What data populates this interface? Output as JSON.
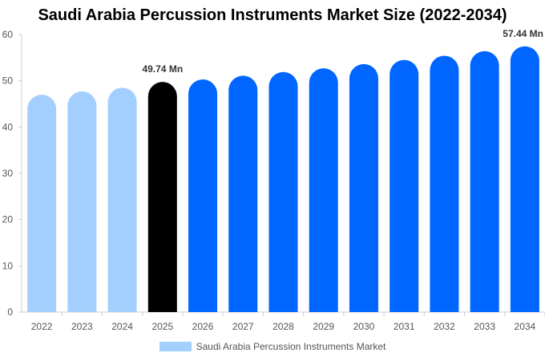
{
  "chart_data": {
    "type": "bar",
    "title": "Saudi Arabia Percussion Instruments Market Size (2022-2034)",
    "categories": [
      "2022",
      "2023",
      "2024",
      "2025",
      "2026",
      "2027",
      "2028",
      "2029",
      "2030",
      "2031",
      "2032",
      "2033",
      "2034"
    ],
    "series": [
      {
        "name": "Saudi Arabia Percussion Instruments Market",
        "values": [
          47.0,
          47.7,
          48.5,
          49.74,
          50.3,
          51.1,
          51.9,
          52.7,
          53.6,
          54.5,
          55.4,
          56.4,
          57.44
        ]
      }
    ],
    "data_labels": [
      {
        "category": "2025",
        "text": "49.74 Mn"
      },
      {
        "category": "2034",
        "text": "57.44 Mn"
      }
    ],
    "ylim": [
      0,
      60
    ],
    "yticks": [
      0,
      10,
      20,
      30,
      40,
      50,
      60
    ],
    "xlabel": "",
    "ylabel": "",
    "colors": {
      "historical": "#a3cffe",
      "current": "#000000",
      "forecast": "#0066ff",
      "axis": "#cccccc",
      "tick_text": "#555555"
    },
    "bar_color_groups": [
      "historical",
      "historical",
      "historical",
      "current",
      "forecast",
      "forecast",
      "forecast",
      "forecast",
      "forecast",
      "forecast",
      "forecast",
      "forecast",
      "forecast"
    ],
    "grid": false,
    "legend": "bottom-center"
  }
}
